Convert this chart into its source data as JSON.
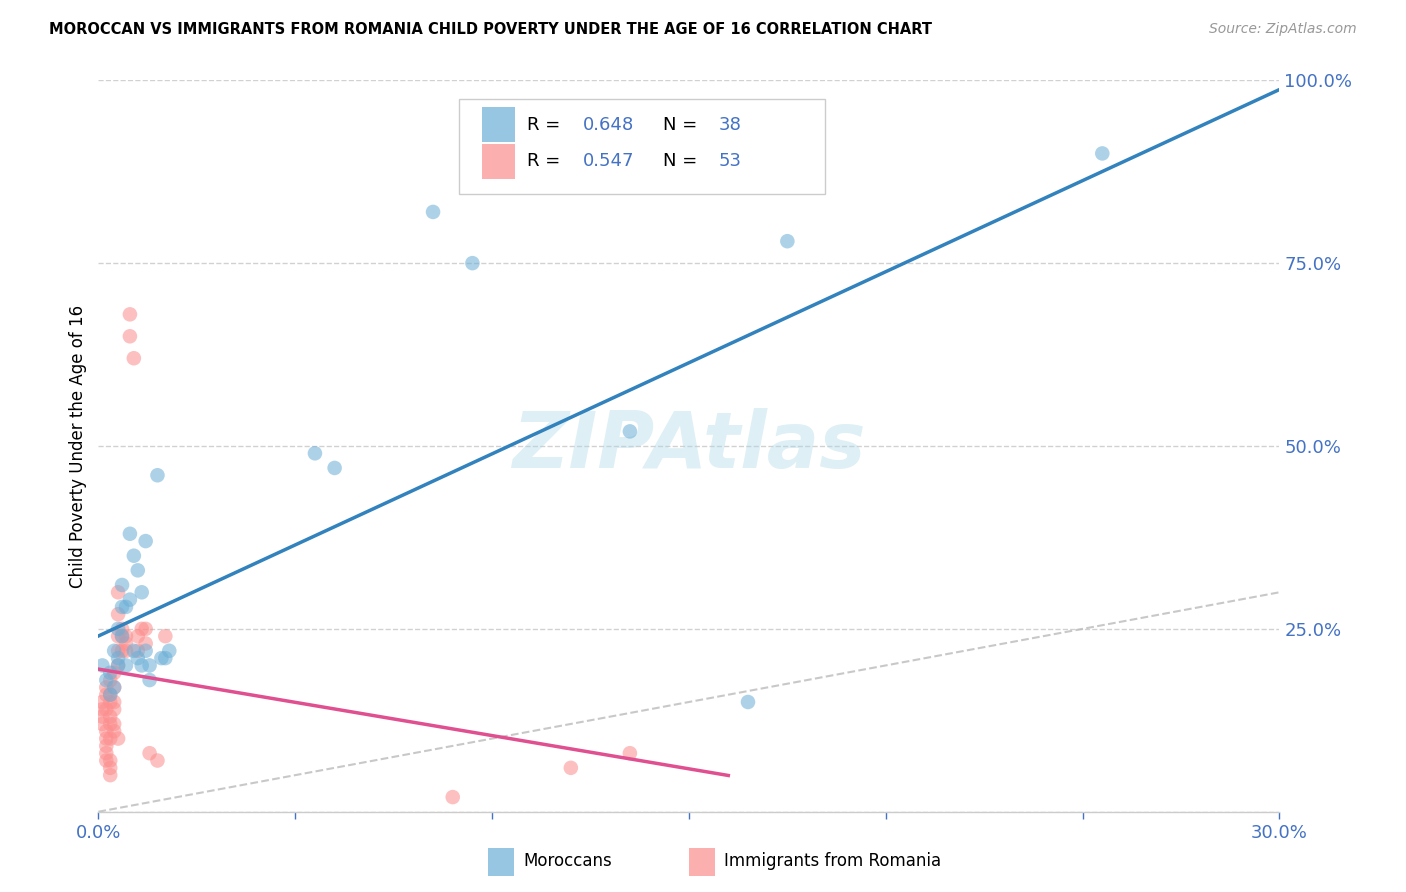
{
  "title": "MOROCCAN VS IMMIGRANTS FROM ROMANIA CHILD POVERTY UNDER THE AGE OF 16 CORRELATION CHART",
  "source": "Source: ZipAtlas.com",
  "ylabel": "Child Poverty Under the Age of 16",
  "xlim": [
    0.0,
    0.3
  ],
  "ylim": [
    0.0,
    1.0
  ],
  "moroccan_color": "#6baed6",
  "romania_color": "#fc8d8d",
  "moroccan_R": 0.648,
  "moroccan_N": 38,
  "romania_R": 0.547,
  "romania_N": 53,
  "moroccan_scatter": [
    [
      0.001,
      0.2
    ],
    [
      0.002,
      0.18
    ],
    [
      0.003,
      0.19
    ],
    [
      0.003,
      0.16
    ],
    [
      0.004,
      0.22
    ],
    [
      0.004,
      0.17
    ],
    [
      0.005,
      0.21
    ],
    [
      0.005,
      0.2
    ],
    [
      0.005,
      0.25
    ],
    [
      0.006,
      0.28
    ],
    [
      0.006,
      0.31
    ],
    [
      0.006,
      0.24
    ],
    [
      0.007,
      0.2
    ],
    [
      0.007,
      0.28
    ],
    [
      0.008,
      0.29
    ],
    [
      0.008,
      0.38
    ],
    [
      0.009,
      0.35
    ],
    [
      0.009,
      0.22
    ],
    [
      0.01,
      0.33
    ],
    [
      0.01,
      0.21
    ],
    [
      0.011,
      0.2
    ],
    [
      0.011,
      0.3
    ],
    [
      0.012,
      0.37
    ],
    [
      0.012,
      0.22
    ],
    [
      0.013,
      0.18
    ],
    [
      0.013,
      0.2
    ],
    [
      0.015,
      0.46
    ],
    [
      0.016,
      0.21
    ],
    [
      0.017,
      0.21
    ],
    [
      0.018,
      0.22
    ],
    [
      0.055,
      0.49
    ],
    [
      0.06,
      0.47
    ],
    [
      0.085,
      0.82
    ],
    [
      0.095,
      0.75
    ],
    [
      0.135,
      0.52
    ],
    [
      0.165,
      0.15
    ],
    [
      0.175,
      0.78
    ],
    [
      0.255,
      0.9
    ]
  ],
  "romania_scatter": [
    [
      0.001,
      0.15
    ],
    [
      0.001,
      0.14
    ],
    [
      0.001,
      0.13
    ],
    [
      0.001,
      0.12
    ],
    [
      0.002,
      0.17
    ],
    [
      0.002,
      0.16
    ],
    [
      0.002,
      0.14
    ],
    [
      0.002,
      0.11
    ],
    [
      0.002,
      0.1
    ],
    [
      0.002,
      0.09
    ],
    [
      0.002,
      0.08
    ],
    [
      0.002,
      0.07
    ],
    [
      0.003,
      0.18
    ],
    [
      0.003,
      0.16
    ],
    [
      0.003,
      0.15
    ],
    [
      0.003,
      0.13
    ],
    [
      0.003,
      0.12
    ],
    [
      0.003,
      0.1
    ],
    [
      0.003,
      0.07
    ],
    [
      0.003,
      0.06
    ],
    [
      0.003,
      0.05
    ],
    [
      0.004,
      0.19
    ],
    [
      0.004,
      0.17
    ],
    [
      0.004,
      0.15
    ],
    [
      0.004,
      0.14
    ],
    [
      0.004,
      0.12
    ],
    [
      0.004,
      0.11
    ],
    [
      0.005,
      0.3
    ],
    [
      0.005,
      0.27
    ],
    [
      0.005,
      0.24
    ],
    [
      0.005,
      0.22
    ],
    [
      0.005,
      0.2
    ],
    [
      0.005,
      0.1
    ],
    [
      0.006,
      0.25
    ],
    [
      0.006,
      0.24
    ],
    [
      0.006,
      0.22
    ],
    [
      0.007,
      0.24
    ],
    [
      0.007,
      0.23
    ],
    [
      0.007,
      0.22
    ],
    [
      0.008,
      0.68
    ],
    [
      0.008,
      0.65
    ],
    [
      0.009,
      0.62
    ],
    [
      0.01,
      0.24
    ],
    [
      0.01,
      0.22
    ],
    [
      0.011,
      0.25
    ],
    [
      0.012,
      0.25
    ],
    [
      0.012,
      0.23
    ],
    [
      0.013,
      0.08
    ],
    [
      0.015,
      0.07
    ],
    [
      0.017,
      0.24
    ],
    [
      0.09,
      0.02
    ],
    [
      0.12,
      0.06
    ],
    [
      0.135,
      0.08
    ]
  ],
  "ref_line_color": "#bbbbbb",
  "blue_line_color": "#3182bd",
  "pink_line_color": "#e05090",
  "watermark": "ZIPAtlas",
  "watermark_color": "#add8e6",
  "legend_moroccan_label": "Moroccans",
  "legend_romania_label": "Immigrants from Romania",
  "axis_color": "#4472c4",
  "grid_color": "#cccccc"
}
